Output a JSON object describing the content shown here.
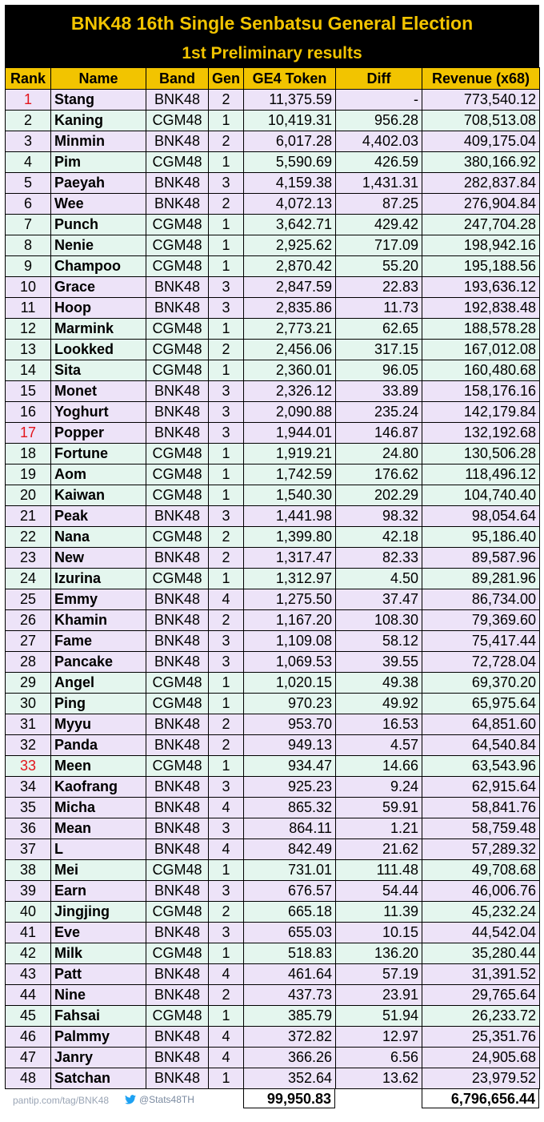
{
  "header": {
    "title": "BNK48 16th Single Senbatsu General Election",
    "subtitle": "1st Preliminary results"
  },
  "columns": [
    "Rank",
    "Name",
    "Band",
    "Gen",
    "GE4 Token",
    "Diff",
    "Revenue (x68)"
  ],
  "colors": {
    "header_bg": "#000000",
    "header_text": "#f2c400",
    "column_header_bg": "#f2c400",
    "bnk_row_bg": "#ede3f8",
    "cgm_row_bg": "#e4f6ee",
    "cutoff_rank_text": "#e3141b"
  },
  "rows": [
    {
      "rank": "1",
      "name": "Stang",
      "band": "BNK48",
      "gen": "2",
      "token": "11,375.59",
      "diff": "-",
      "revenue": "773,540.12",
      "highlight": true
    },
    {
      "rank": "2",
      "name": "Kaning",
      "band": "CGM48",
      "gen": "1",
      "token": "10,419.31",
      "diff": "956.28",
      "revenue": "708,513.08"
    },
    {
      "rank": "3",
      "name": "Minmin",
      "band": "BNK48",
      "gen": "2",
      "token": "6,017.28",
      "diff": "4,402.03",
      "revenue": "409,175.04"
    },
    {
      "rank": "4",
      "name": "Pim",
      "band": "CGM48",
      "gen": "1",
      "token": "5,590.69",
      "diff": "426.59",
      "revenue": "380,166.92"
    },
    {
      "rank": "5",
      "name": "Paeyah",
      "band": "BNK48",
      "gen": "3",
      "token": "4,159.38",
      "diff": "1,431.31",
      "revenue": "282,837.84"
    },
    {
      "rank": "6",
      "name": "Wee",
      "band": "BNK48",
      "gen": "2",
      "token": "4,072.13",
      "diff": "87.25",
      "revenue": "276,904.84"
    },
    {
      "rank": "7",
      "name": "Punch",
      "band": "CGM48",
      "gen": "1",
      "token": "3,642.71",
      "diff": "429.42",
      "revenue": "247,704.28"
    },
    {
      "rank": "8",
      "name": "Nenie",
      "band": "CGM48",
      "gen": "1",
      "token": "2,925.62",
      "diff": "717.09",
      "revenue": "198,942.16"
    },
    {
      "rank": "9",
      "name": "Champoo",
      "band": "CGM48",
      "gen": "1",
      "token": "2,870.42",
      "diff": "55.20",
      "revenue": "195,188.56"
    },
    {
      "rank": "10",
      "name": "Grace",
      "band": "BNK48",
      "gen": "3",
      "token": "2,847.59",
      "diff": "22.83",
      "revenue": "193,636.12"
    },
    {
      "rank": "11",
      "name": "Hoop",
      "band": "BNK48",
      "gen": "3",
      "token": "2,835.86",
      "diff": "11.73",
      "revenue": "192,838.48"
    },
    {
      "rank": "12",
      "name": "Marmink",
      "band": "CGM48",
      "gen": "1",
      "token": "2,773.21",
      "diff": "62.65",
      "revenue": "188,578.28"
    },
    {
      "rank": "13",
      "name": "Lookked",
      "band": "CGM48",
      "gen": "2",
      "token": "2,456.06",
      "diff": "317.15",
      "revenue": "167,012.08"
    },
    {
      "rank": "14",
      "name": "Sita",
      "band": "CGM48",
      "gen": "1",
      "token": "2,360.01",
      "diff": "96.05",
      "revenue": "160,480.68"
    },
    {
      "rank": "15",
      "name": "Monet",
      "band": "BNK48",
      "gen": "3",
      "token": "2,326.12",
      "diff": "33.89",
      "revenue": "158,176.16"
    },
    {
      "rank": "16",
      "name": "Yoghurt",
      "band": "BNK48",
      "gen": "3",
      "token": "2,090.88",
      "diff": "235.24",
      "revenue": "142,179.84"
    },
    {
      "rank": "17",
      "name": "Popper",
      "band": "BNK48",
      "gen": "3",
      "token": "1,944.01",
      "diff": "146.87",
      "revenue": "132,192.68",
      "highlight": true
    },
    {
      "rank": "18",
      "name": "Fortune",
      "band": "CGM48",
      "gen": "1",
      "token": "1,919.21",
      "diff": "24.80",
      "revenue": "130,506.28"
    },
    {
      "rank": "19",
      "name": "Aom",
      "band": "CGM48",
      "gen": "1",
      "token": "1,742.59",
      "diff": "176.62",
      "revenue": "118,496.12"
    },
    {
      "rank": "20",
      "name": "Kaiwan",
      "band": "CGM48",
      "gen": "1",
      "token": "1,540.30",
      "diff": "202.29",
      "revenue": "104,740.40"
    },
    {
      "rank": "21",
      "name": "Peak",
      "band": "BNK48",
      "gen": "3",
      "token": "1,441.98",
      "diff": "98.32",
      "revenue": "98,054.64"
    },
    {
      "rank": "22",
      "name": "Nana",
      "band": "CGM48",
      "gen": "2",
      "token": "1,399.80",
      "diff": "42.18",
      "revenue": "95,186.40"
    },
    {
      "rank": "23",
      "name": "New",
      "band": "BNK48",
      "gen": "2",
      "token": "1,317.47",
      "diff": "82.33",
      "revenue": "89,587.96"
    },
    {
      "rank": "24",
      "name": "Izurina",
      "band": "CGM48",
      "gen": "1",
      "token": "1,312.97",
      "diff": "4.50",
      "revenue": "89,281.96"
    },
    {
      "rank": "25",
      "name": "Emmy",
      "band": "BNK48",
      "gen": "4",
      "token": "1,275.50",
      "diff": "37.47",
      "revenue": "86,734.00"
    },
    {
      "rank": "26",
      "name": "Khamin",
      "band": "BNK48",
      "gen": "2",
      "token": "1,167.20",
      "diff": "108.30",
      "revenue": "79,369.60"
    },
    {
      "rank": "27",
      "name": "Fame",
      "band": "BNK48",
      "gen": "3",
      "token": "1,109.08",
      "diff": "58.12",
      "revenue": "75,417.44"
    },
    {
      "rank": "28",
      "name": "Pancake",
      "band": "BNK48",
      "gen": "3",
      "token": "1,069.53",
      "diff": "39.55",
      "revenue": "72,728.04"
    },
    {
      "rank": "29",
      "name": "Angel",
      "band": "CGM48",
      "gen": "1",
      "token": "1,020.15",
      "diff": "49.38",
      "revenue": "69,370.20"
    },
    {
      "rank": "30",
      "name": "Ping",
      "band": "CGM48",
      "gen": "1",
      "token": "970.23",
      "diff": "49.92",
      "revenue": "65,975.64"
    },
    {
      "rank": "31",
      "name": "Myyu",
      "band": "BNK48",
      "gen": "2",
      "token": "953.70",
      "diff": "16.53",
      "revenue": "64,851.60"
    },
    {
      "rank": "32",
      "name": "Panda",
      "band": "BNK48",
      "gen": "2",
      "token": "949.13",
      "diff": "4.57",
      "revenue": "64,540.84"
    },
    {
      "rank": "33",
      "name": "Meen",
      "band": "CGM48",
      "gen": "1",
      "token": "934.47",
      "diff": "14.66",
      "revenue": "63,543.96",
      "highlight": true
    },
    {
      "rank": "34",
      "name": "Kaofrang",
      "band": "BNK48",
      "gen": "3",
      "token": "925.23",
      "diff": "9.24",
      "revenue": "62,915.64"
    },
    {
      "rank": "35",
      "name": "Micha",
      "band": "BNK48",
      "gen": "4",
      "token": "865.32",
      "diff": "59.91",
      "revenue": "58,841.76"
    },
    {
      "rank": "36",
      "name": "Mean",
      "band": "BNK48",
      "gen": "3",
      "token": "864.11",
      "diff": "1.21",
      "revenue": "58,759.48"
    },
    {
      "rank": "37",
      "name": "L",
      "band": "BNK48",
      "gen": "4",
      "token": "842.49",
      "diff": "21.62",
      "revenue": "57,289.32"
    },
    {
      "rank": "38",
      "name": "Mei",
      "band": "CGM48",
      "gen": "1",
      "token": "731.01",
      "diff": "111.48",
      "revenue": "49,708.68"
    },
    {
      "rank": "39",
      "name": "Earn",
      "band": "BNK48",
      "gen": "3",
      "token": "676.57",
      "diff": "54.44",
      "revenue": "46,006.76"
    },
    {
      "rank": "40",
      "name": "Jingjing",
      "band": "CGM48",
      "gen": "2",
      "token": "665.18",
      "diff": "11.39",
      "revenue": "45,232.24"
    },
    {
      "rank": "41",
      "name": "Eve",
      "band": "BNK48",
      "gen": "3",
      "token": "655.03",
      "diff": "10.15",
      "revenue": "44,542.04"
    },
    {
      "rank": "42",
      "name": "Milk",
      "band": "CGM48",
      "gen": "1",
      "token": "518.83",
      "diff": "136.20",
      "revenue": "35,280.44"
    },
    {
      "rank": "43",
      "name": "Patt",
      "band": "BNK48",
      "gen": "4",
      "token": "461.64",
      "diff": "57.19",
      "revenue": "31,391.52"
    },
    {
      "rank": "44",
      "name": "Nine",
      "band": "BNK48",
      "gen": "2",
      "token": "437.73",
      "diff": "23.91",
      "revenue": "29,765.64"
    },
    {
      "rank": "45",
      "name": "Fahsai",
      "band": "CGM48",
      "gen": "1",
      "token": "385.79",
      "diff": "51.94",
      "revenue": "26,233.72"
    },
    {
      "rank": "46",
      "name": "Palmmy",
      "band": "BNK48",
      "gen": "4",
      "token": "372.82",
      "diff": "12.97",
      "revenue": "25,351.76"
    },
    {
      "rank": "47",
      "name": "Janry",
      "band": "BNK48",
      "gen": "4",
      "token": "366.26",
      "diff": "6.56",
      "revenue": "24,905.68"
    },
    {
      "rank": "48",
      "name": "Satchan",
      "band": "BNK48",
      "gen": "1",
      "token": "352.64",
      "diff": "13.62",
      "revenue": "23,979.52"
    }
  ],
  "totals": {
    "token": "99,950.83",
    "revenue": "6,796,656.44"
  },
  "footer": {
    "link": "pantip.com/tag/BNK48",
    "twitter_icon": "twitter-bird-icon",
    "twitter": "@Stats48TH"
  }
}
